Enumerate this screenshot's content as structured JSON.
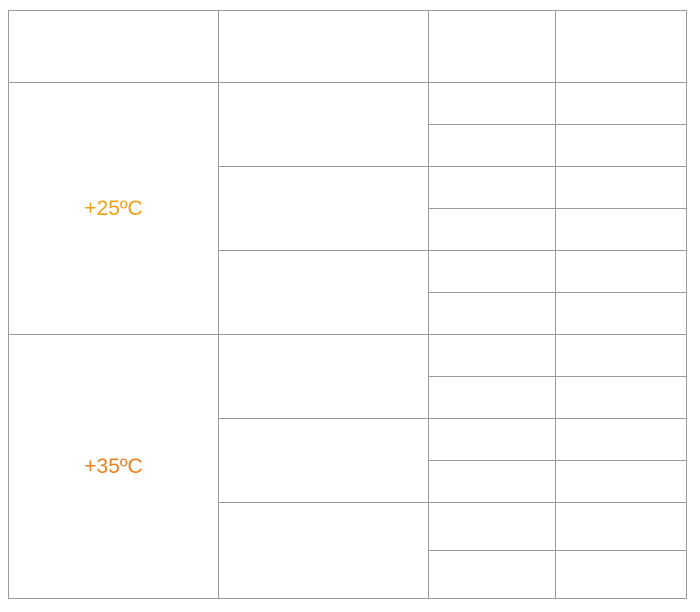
{
  "table": {
    "groups": [
      {
        "label": "+25ºC"
      },
      {
        "label": "+35ºC"
      }
    ]
  }
}
